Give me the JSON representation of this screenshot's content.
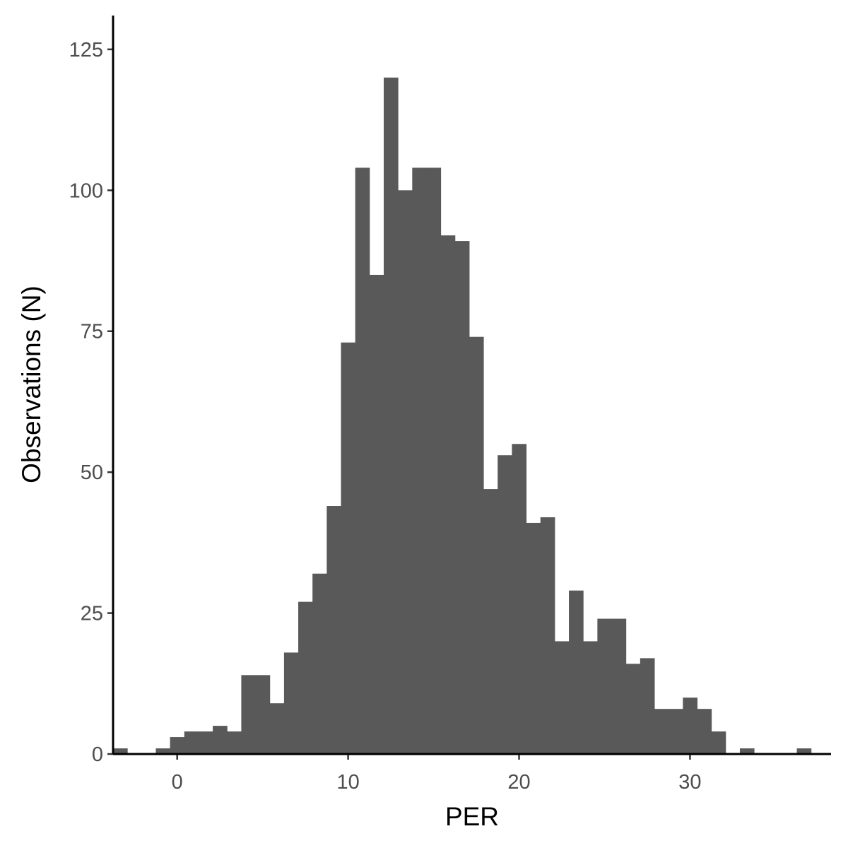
{
  "chart_data": {
    "type": "bar",
    "title": "",
    "xlabel": "PER",
    "ylabel": "Observations (N)",
    "bin_width": 0.8333,
    "bin_start": -3.75,
    "xlim": [
      -3.75,
      38.25
    ],
    "ylim": [
      0,
      131
    ],
    "x_ticks": [
      0,
      10,
      20,
      30
    ],
    "y_ticks": [
      0,
      25,
      50,
      75,
      100,
      125
    ],
    "values": [
      1,
      0,
      0,
      1,
      3,
      4,
      4,
      5,
      4,
      14,
      14,
      9,
      18,
      27,
      32,
      44,
      73,
      104,
      85,
      120,
      100,
      104,
      104,
      92,
      91,
      74,
      47,
      53,
      55,
      41,
      42,
      20,
      29,
      20,
      24,
      24,
      16,
      17,
      8,
      8,
      10,
      8,
      4,
      0,
      1,
      0,
      0,
      0,
      1
    ],
    "grid": false,
    "legend": "none",
    "bar_color": "#595959"
  }
}
